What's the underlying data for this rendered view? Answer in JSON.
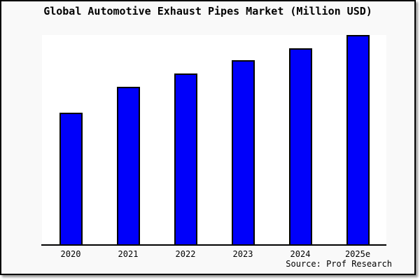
{
  "title": "Global Automotive Exhaust Pipes Market (Million USD)",
  "source_note": "Source: Prof Research",
  "frame": {
    "border_color": "#000000",
    "background": "#f9f9f9",
    "plot_background": "#ffffff",
    "shadow_color": "#9a9a9a"
  },
  "chart_data": {
    "type": "bar",
    "title": "Global Automotive Exhaust Pipes Market (Million USD)",
    "categories": [
      "2020",
      "2021",
      "2022",
      "2023",
      "2024",
      "2025e"
    ],
    "values": [
      62.8,
      75.3,
      81.5,
      88.0,
      93.8,
      100.0
    ],
    "value_scale_note": "no numeric y-axis shown in chart; values are relative bar heights with 2025e = 100",
    "xlabel": "",
    "ylabel": "",
    "ylim": [
      0,
      100
    ],
    "grid": false,
    "legend": false,
    "bar_color": "#0000fa",
    "bar_edge_color": "#000000",
    "annotations": [
      "Source: Prof Research"
    ]
  }
}
